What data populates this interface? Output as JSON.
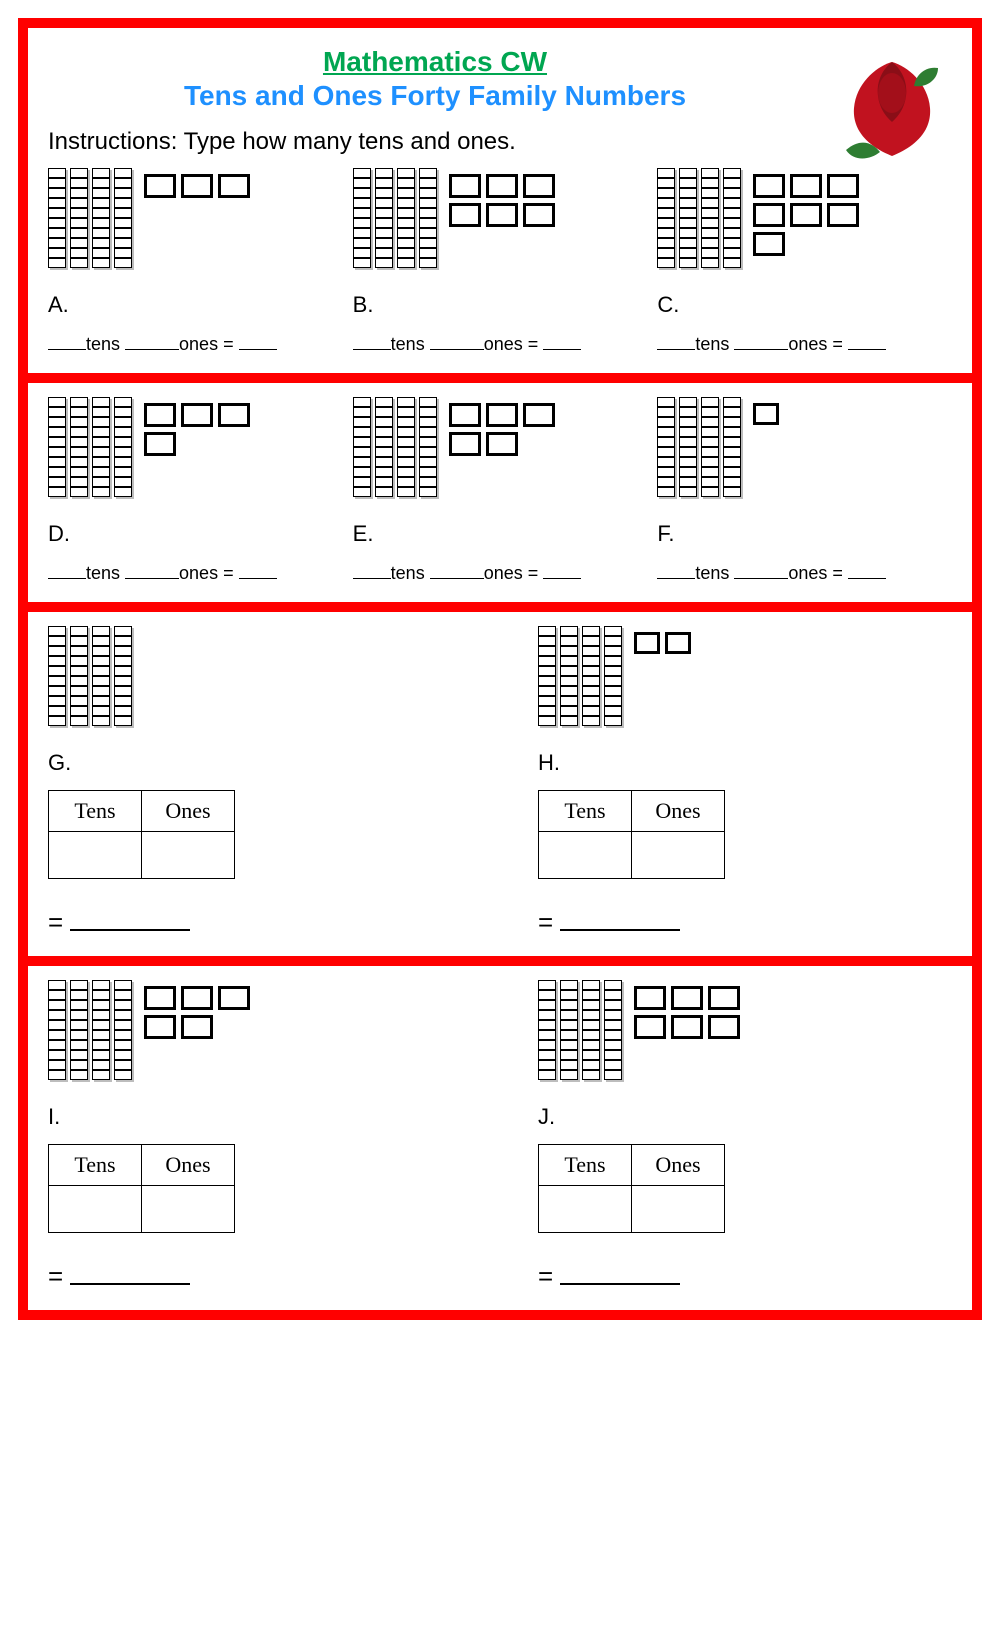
{
  "title": "Mathematics CW",
  "subtitle": "Tens and Ones Forty Family Numbers",
  "instructions": "Instructions: Type how many tens and ones.",
  "labels": {
    "tens_word": "tens",
    "ones_word": "ones",
    "equals": "=",
    "tens_header": "Tens",
    "ones_header": "Ones"
  },
  "colors": {
    "border": "#ff0000",
    "title": "#00a651",
    "subtitle": "#1e90ff",
    "text": "#000000",
    "background": "#ffffff"
  },
  "rose": {
    "petal_color": "#c1121f",
    "petal_dark": "#8a0e17",
    "leaf_color": "#2e7d32"
  },
  "problems": [
    {
      "id": "A",
      "letter": "A.",
      "tens": 4,
      "ones": 3,
      "answer_style": "line"
    },
    {
      "id": "B",
      "letter": "B.",
      "tens": 4,
      "ones": 6,
      "answer_style": "line"
    },
    {
      "id": "C",
      "letter": "C.",
      "tens": 4,
      "ones": 7,
      "answer_style": "line"
    },
    {
      "id": "D",
      "letter": "D.",
      "tens": 4,
      "ones": 4,
      "answer_style": "line"
    },
    {
      "id": "E",
      "letter": "E.",
      "tens": 4,
      "ones": 5,
      "answer_style": "line"
    },
    {
      "id": "F",
      "letter": "F.",
      "tens": 4,
      "ones": 1,
      "answer_style": "line"
    },
    {
      "id": "G",
      "letter": "G.",
      "tens": 4,
      "ones": 0,
      "answer_style": "table"
    },
    {
      "id": "H",
      "letter": "H.",
      "tens": 4,
      "ones": 2,
      "answer_style": "table"
    },
    {
      "id": "I",
      "letter": "I.",
      "tens": 4,
      "ones": 5,
      "answer_style": "table"
    },
    {
      "id": "J",
      "letter": "J.",
      "tens": 4,
      "ones": 6,
      "answer_style": "table"
    }
  ]
}
